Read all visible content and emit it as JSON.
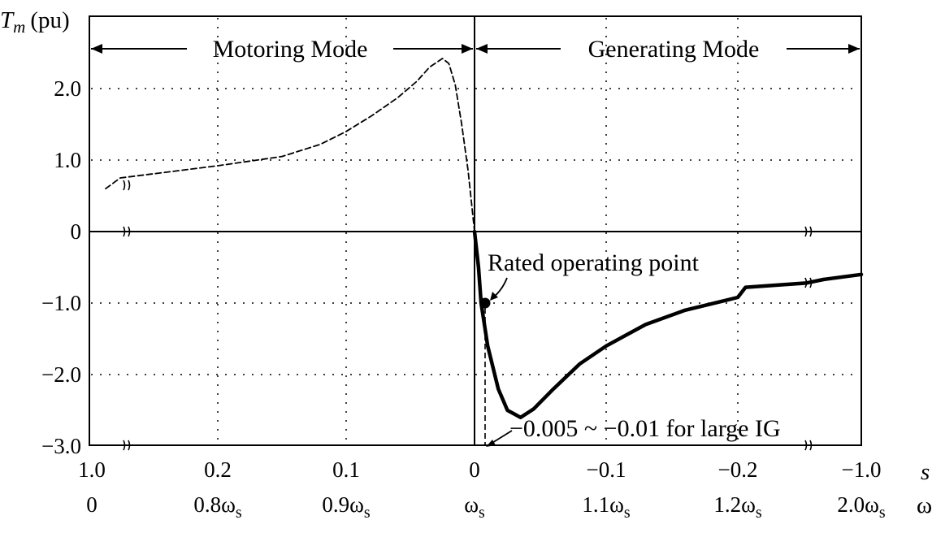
{
  "chart_data": {
    "type": "line",
    "ylabel_symbol": "T",
    "ylabel_subscript": "m",
    "ylabel_unit": "(pu)",
    "xlabel_slip": "s",
    "xlabel_speed": "ω",
    "ylim": [
      -3.0,
      2.5
    ],
    "grid": true,
    "y_ticks": [
      "2.0",
      "1.0",
      "0",
      "−1.0",
      "−2.0",
      "−3.0"
    ],
    "y_tick_values": [
      2.0,
      1.0,
      0,
      -1.0,
      -2.0,
      -3.0
    ],
    "x_ticks_slip": [
      "1.0",
      "0.2",
      "0.1",
      "0",
      "−0.1",
      "−0.2",
      "−1.0"
    ],
    "x_ticks_speed": [
      "0",
      "0.8ω",
      "0.9ω",
      "ω",
      "1.1ω",
      "1.2ω",
      "2.0ω"
    ],
    "x_tick_speed_subscript": "s",
    "modes": {
      "motoring": "Motoring Mode",
      "generating": "Generating Mode"
    },
    "annotations": {
      "rated_point": "Rated operating point",
      "slip_range": "−0.005 ~ −0.01 for large IG"
    },
    "rated_operating_point": {
      "s": -0.005,
      "torque": -1.0
    },
    "series": [
      {
        "style": "dashed",
        "points": [
          [
            1.0,
            0.6
          ],
          [
            0.4,
            0.75
          ],
          [
            0.2,
            0.92
          ],
          [
            0.15,
            1.05
          ],
          [
            0.12,
            1.22
          ],
          [
            0.1,
            1.4
          ],
          [
            0.08,
            1.62
          ],
          [
            0.06,
            1.87
          ],
          [
            0.045,
            2.1
          ],
          [
            0.035,
            2.3
          ],
          [
            0.025,
            2.42
          ],
          [
            0.02,
            2.35
          ],
          [
            0.015,
            2.05
          ],
          [
            0.01,
            1.5
          ],
          [
            0.005,
            0.85
          ],
          [
            0.0,
            0.0
          ]
        ]
      },
      {
        "style": "solid-thick",
        "points": [
          [
            0.0,
            0.0
          ],
          [
            -0.003,
            -0.5
          ],
          [
            -0.005,
            -1.0
          ],
          [
            -0.01,
            -1.6
          ],
          [
            -0.018,
            -2.2
          ],
          [
            -0.025,
            -2.5
          ],
          [
            -0.035,
            -2.6
          ],
          [
            -0.045,
            -2.48
          ],
          [
            -0.06,
            -2.2
          ],
          [
            -0.08,
            -1.85
          ],
          [
            -0.1,
            -1.6
          ],
          [
            -0.13,
            -1.3
          ],
          [
            -0.16,
            -1.1
          ],
          [
            -0.2,
            -0.92
          ],
          [
            -0.25,
            -0.78
          ],
          [
            -0.27,
            -0.72
          ],
          [
            -0.5,
            -0.67
          ],
          [
            -1.0,
            -0.6
          ]
        ]
      }
    ]
  }
}
